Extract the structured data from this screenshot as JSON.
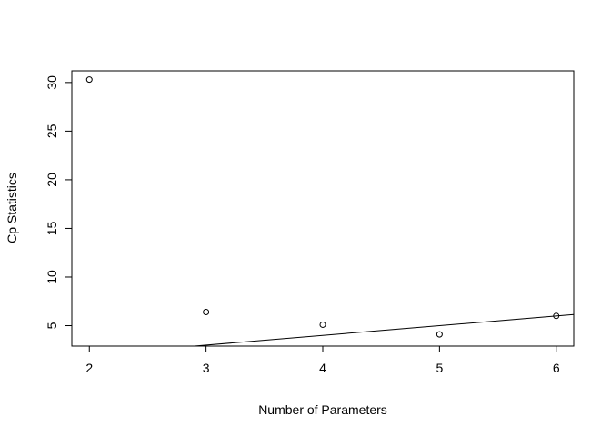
{
  "chart_data": {
    "type": "scatter",
    "title": "",
    "xlabel": "Number of Parameters",
    "ylabel": "Cp Statistics",
    "xlim": [
      1.85,
      6.15
    ],
    "ylim": [
      2.9,
      31.2
    ],
    "x_ticks": [
      2,
      3,
      4,
      5,
      6
    ],
    "y_ticks": [
      5,
      10,
      15,
      20,
      25,
      30
    ],
    "grid": false,
    "points": [
      {
        "x": 2,
        "y": 30.3
      },
      {
        "x": 3,
        "y": 6.4
      },
      {
        "x": 4,
        "y": 5.1
      },
      {
        "x": 5,
        "y": 4.1
      },
      {
        "x": 6,
        "y": 6.0
      }
    ],
    "reference_line": {
      "intercept": 0,
      "slope": 1
    }
  }
}
